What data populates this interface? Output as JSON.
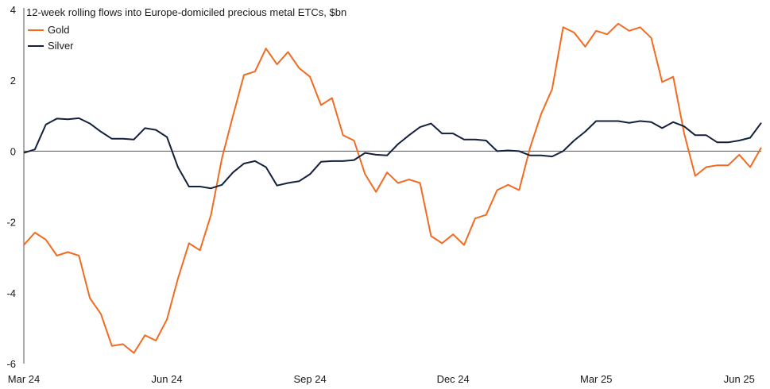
{
  "chart_data": {
    "type": "line",
    "title": "12-week rolling flows into Europe-domiciled precious metal ETCs, $bn",
    "xlabel": "",
    "ylabel": "",
    "ylim": [
      -6,
      4
    ],
    "y_ticks": [
      4,
      2,
      0,
      -2,
      -4,
      -6
    ],
    "x_ticks": [
      "Mar 24",
      "Jun 24",
      "Sep 24",
      "Dec 24",
      "Mar 25",
      "Jun 25"
    ],
    "grid": false,
    "legend_placement": "top-left",
    "series": [
      {
        "name": "Gold",
        "color": "#f26b21",
        "values": [
          -2.65,
          -2.3,
          -2.5,
          -2.95,
          -2.85,
          -2.95,
          -4.15,
          -4.6,
          -5.5,
          -5.45,
          -5.7,
          -5.2,
          -5.35,
          -4.75,
          -3.6,
          -2.6,
          -2.8,
          -1.8,
          -0.2,
          1.0,
          2.15,
          2.25,
          2.9,
          2.45,
          2.8,
          2.35,
          2.1,
          1.3,
          1.5,
          0.45,
          0.3,
          -0.65,
          -1.15,
          -0.6,
          -0.9,
          -0.8,
          -0.9,
          -2.4,
          -2.6,
          -2.35,
          -2.65,
          -1.9,
          -1.8,
          -1.1,
          -0.95,
          -1.1,
          0.1,
          1.05,
          1.75,
          3.5,
          3.35,
          2.95,
          3.4,
          3.3,
          3.6,
          3.4,
          3.5,
          3.2,
          1.95,
          2.1,
          0.5,
          -0.7,
          -0.45,
          -0.4,
          -0.4,
          -0.1,
          -0.45,
          0.1
        ]
      },
      {
        "name": "Silver",
        "color": "#14213d",
        "values": [
          -0.05,
          0.05,
          0.75,
          0.92,
          0.9,
          0.93,
          0.78,
          0.55,
          0.35,
          0.35,
          0.33,
          0.65,
          0.6,
          0.4,
          -0.45,
          -1.0,
          -1.0,
          -1.05,
          -0.95,
          -0.6,
          -0.35,
          -0.28,
          -0.45,
          -0.97,
          -0.9,
          -0.85,
          -0.65,
          -0.3,
          -0.28,
          -0.28,
          -0.25,
          -0.05,
          -0.1,
          -0.12,
          0.2,
          0.45,
          0.68,
          0.78,
          0.5,
          0.5,
          0.33,
          0.33,
          0.3,
          0.0,
          0.02,
          0.0,
          -0.12,
          -0.12,
          -0.15,
          0.0,
          0.3,
          0.55,
          0.85,
          0.85,
          0.85,
          0.8,
          0.85,
          0.82,
          0.65,
          0.82,
          0.7,
          0.45,
          0.45,
          0.25,
          0.25,
          0.3,
          0.38,
          0.8
        ]
      }
    ]
  }
}
